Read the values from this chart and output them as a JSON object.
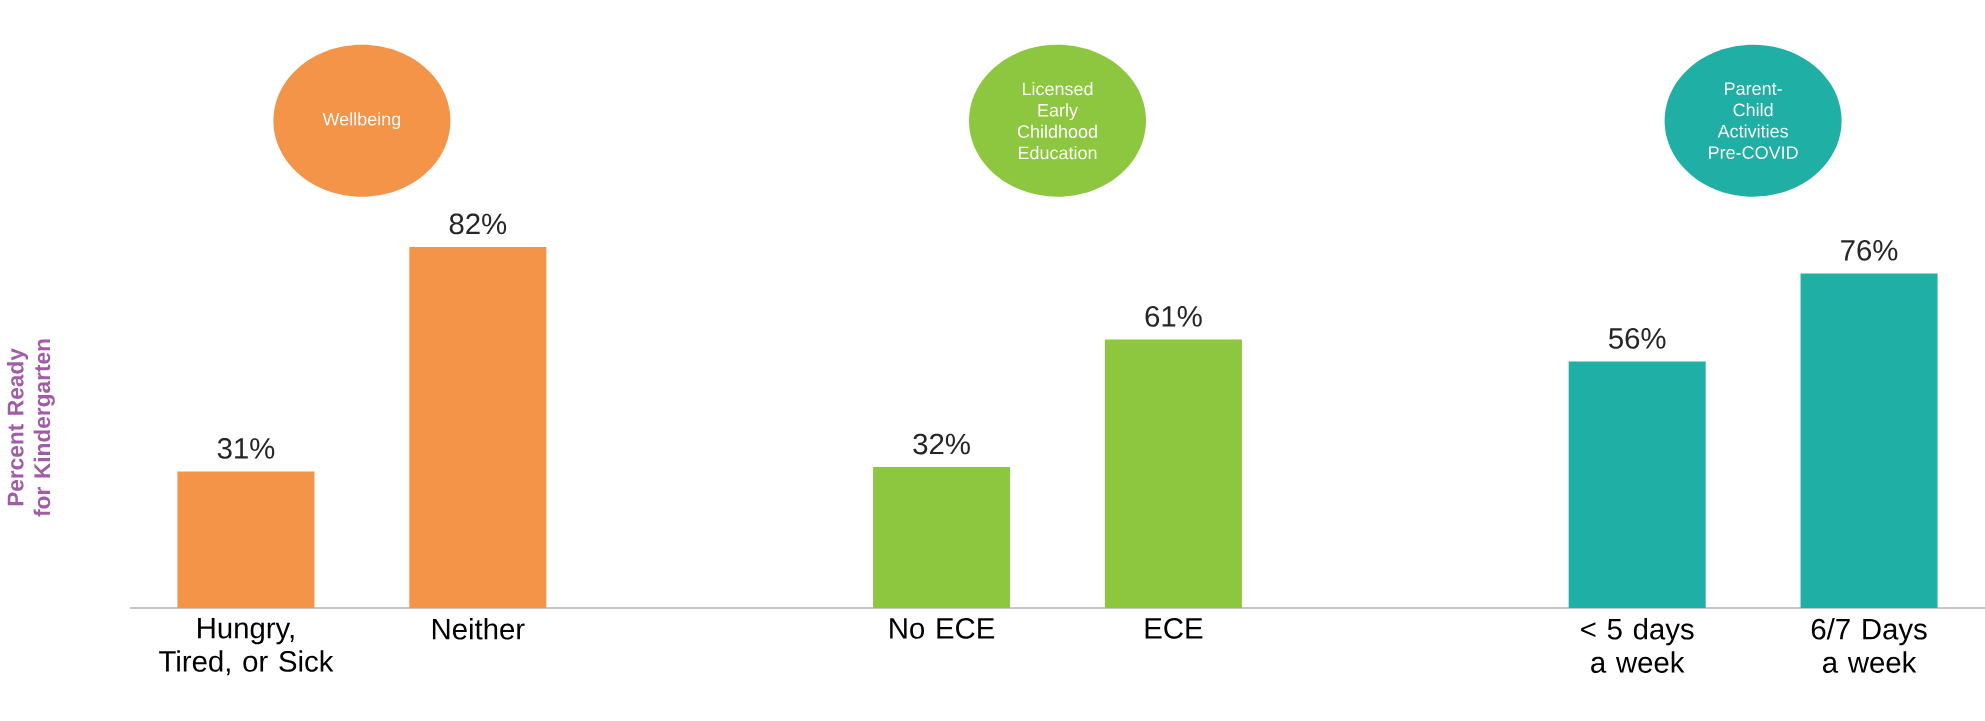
{
  "chart_data": {
    "type": "bar",
    "ylabel": "Percent Ready for Kindergarten",
    "categories": [
      "Hungry, Tired, or Sick",
      "Neither",
      null,
      "No ECE",
      "ECE",
      null,
      "< 5 days a week",
      "6/7 Days a week"
    ],
    "values": [
      31,
      82,
      null,
      32,
      61,
      null,
      56,
      76
    ],
    "colors": [
      "#f39449",
      "#f39449",
      "#ffffff",
      "#8dc63f",
      "#8dc63f",
      "#ffffff",
      "#20afa4",
      "#20afa4"
    ],
    "value_labels": [
      "31%",
      "82%",
      null,
      "32%",
      "61%",
      null,
      "56%",
      "76%"
    ],
    "tick_labels": "x",
    "annotations": [
      "Wellbeing",
      "Licensed Early Childhood Education",
      "Parent-Child Activities Pre-COVID"
    ]
  }
}
